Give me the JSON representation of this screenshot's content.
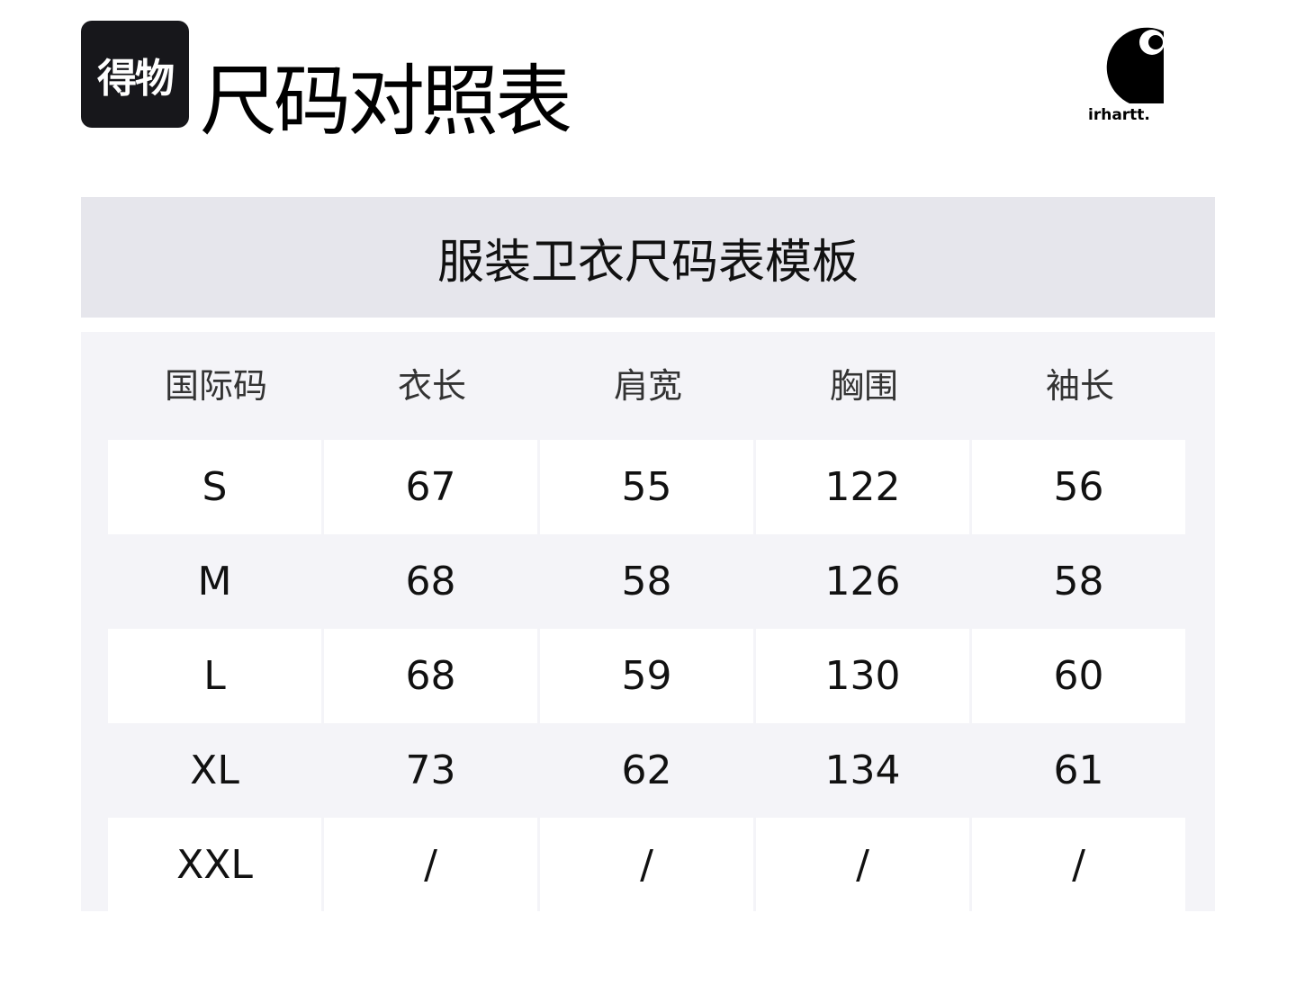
{
  "header": {
    "app_logo_text": "得物",
    "title": "尺码对照表",
    "brand_logo_text": "irhartt."
  },
  "table": {
    "caption": "服装卫衣尺码表模板",
    "columns": [
      "国际码",
      "衣长",
      "肩宽",
      "胸围",
      "袖长"
    ],
    "rows": [
      [
        "S",
        "67",
        "55",
        "122",
        "56"
      ],
      [
        "M",
        "68",
        "58",
        "126",
        "58"
      ],
      [
        "L",
        "68",
        "59",
        "130",
        "60"
      ],
      [
        "XL",
        "73",
        "62",
        "134",
        "61"
      ],
      [
        "XXL",
        "/",
        "/",
        "/",
        "/"
      ]
    ]
  },
  "colors": {
    "band": "#e6e6ec",
    "panel": "#f4f4f8",
    "logo_bg": "#17171b"
  }
}
